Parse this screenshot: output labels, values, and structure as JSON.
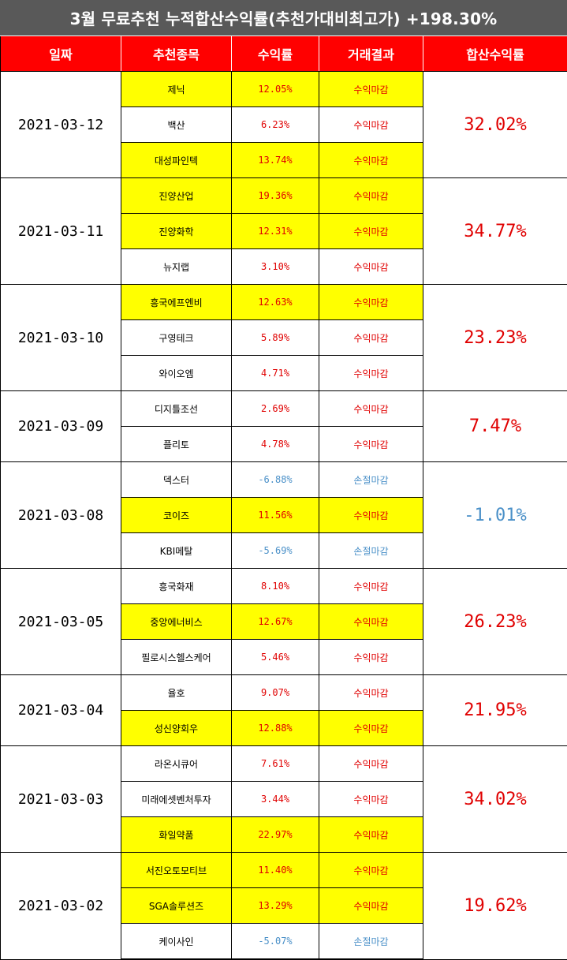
{
  "title": "3월 무료추천 누적합산수익률(추천가대비최고가) +198.30%",
  "headers": {
    "date": "일짜",
    "stock": "추천종목",
    "return": "수익률",
    "result": "거래결과",
    "sum": "합산수익률"
  },
  "groups": [
    {
      "date": "2021-03-12",
      "sum": "32.02%",
      "sum_negative": false,
      "rows": [
        {
          "name": "제닉",
          "return": "12.05%",
          "result": "수익마감",
          "highlight": true,
          "negative": false
        },
        {
          "name": "백산",
          "return": "6.23%",
          "result": "수익마감",
          "highlight": false,
          "negative": false
        },
        {
          "name": "대성파인텍",
          "return": "13.74%",
          "result": "수익마감",
          "highlight": true,
          "negative": false
        }
      ]
    },
    {
      "date": "2021-03-11",
      "sum": "34.77%",
      "sum_negative": false,
      "rows": [
        {
          "name": "진양산업",
          "return": "19.36%",
          "result": "수익마감",
          "highlight": true,
          "negative": false
        },
        {
          "name": "진양화학",
          "return": "12.31%",
          "result": "수익마감",
          "highlight": true,
          "negative": false
        },
        {
          "name": "뉴지랩",
          "return": "3.10%",
          "result": "수익마감",
          "highlight": false,
          "negative": false
        }
      ]
    },
    {
      "date": "2021-03-10",
      "sum": "23.23%",
      "sum_negative": false,
      "rows": [
        {
          "name": "흥국에프엔비",
          "return": "12.63%",
          "result": "수익마감",
          "highlight": true,
          "negative": false
        },
        {
          "name": "구영테크",
          "return": "5.89%",
          "result": "수익마감",
          "highlight": false,
          "negative": false
        },
        {
          "name": "와이오엠",
          "return": "4.71%",
          "result": "수익마감",
          "highlight": false,
          "negative": false
        }
      ]
    },
    {
      "date": "2021-03-09",
      "sum": "7.47%",
      "sum_negative": false,
      "rows": [
        {
          "name": "디지틀조선",
          "return": "2.69%",
          "result": "수익마감",
          "highlight": false,
          "negative": false
        },
        {
          "name": "플리토",
          "return": "4.78%",
          "result": "수익마감",
          "highlight": false,
          "negative": false
        }
      ]
    },
    {
      "date": "2021-03-08",
      "sum": "-1.01%",
      "sum_negative": true,
      "rows": [
        {
          "name": "덱스터",
          "return": "-6.88%",
          "result": "손절마감",
          "highlight": false,
          "negative": true
        },
        {
          "name": "코이즈",
          "return": "11.56%",
          "result": "수익마감",
          "highlight": true,
          "negative": false
        },
        {
          "name": "KBI메탈",
          "return": "-5.69%",
          "result": "손절마감",
          "highlight": false,
          "negative": true
        }
      ]
    },
    {
      "date": "2021-03-05",
      "sum": "26.23%",
      "sum_negative": false,
      "rows": [
        {
          "name": "흥국화재",
          "return": "8.10%",
          "result": "수익마감",
          "highlight": false,
          "negative": false
        },
        {
          "name": "중앙에너비스",
          "return": "12.67%",
          "result": "수익마감",
          "highlight": true,
          "negative": false
        },
        {
          "name": "필로시스헬스케어",
          "return": "5.46%",
          "result": "수익마감",
          "highlight": false,
          "negative": false
        }
      ]
    },
    {
      "date": "2021-03-04",
      "sum": "21.95%",
      "sum_negative": false,
      "rows": [
        {
          "name": "율호",
          "return": "9.07%",
          "result": "수익마감",
          "highlight": false,
          "negative": false
        },
        {
          "name": "성신양회우",
          "return": "12.88%",
          "result": "수익마감",
          "highlight": true,
          "negative": false
        }
      ]
    },
    {
      "date": "2021-03-03",
      "sum": "34.02%",
      "sum_negative": false,
      "rows": [
        {
          "name": "라온시큐어",
          "return": "7.61%",
          "result": "수익마감",
          "highlight": false,
          "negative": false
        },
        {
          "name": "미래에셋벤처투자",
          "return": "3.44%",
          "result": "수익마감",
          "highlight": false,
          "negative": false
        },
        {
          "name": "화일약품",
          "return": "22.97%",
          "result": "수익마감",
          "highlight": true,
          "negative": false
        }
      ]
    },
    {
      "date": "2021-03-02",
      "sum": "19.62%",
      "sum_negative": false,
      "rows": [
        {
          "name": "서진오토모티브",
          "return": "11.40%",
          "result": "수익마감",
          "highlight": true,
          "negative": false
        },
        {
          "name": "SGA솔루션즈",
          "return": "13.29%",
          "result": "수익마감",
          "highlight": true,
          "negative": false
        },
        {
          "name": "케이사인",
          "return": "-5.07%",
          "result": "손절마감",
          "highlight": false,
          "negative": true
        }
      ]
    }
  ],
  "colors": {
    "header_bg": "#ff0000",
    "title_bg": "#595959",
    "highlight": "#ffff00",
    "positive": "#e00000",
    "negative": "#4a90c8"
  }
}
